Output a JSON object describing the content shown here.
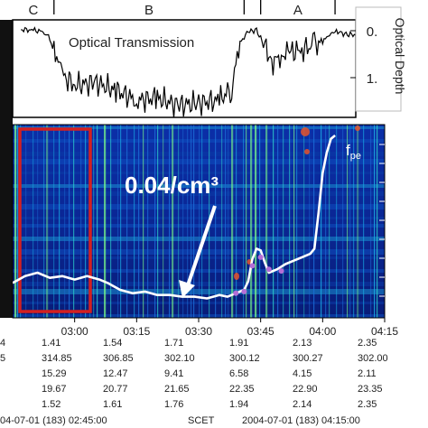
{
  "chart_data": {
    "type": "line",
    "top_panel": {
      "label": "Optical Transmission",
      "ylabel": "Optical Depth",
      "y_ticks": [
        "0.",
        "1."
      ],
      "regions": [
        {
          "label": "C",
          "start": "02:45",
          "end": "02:55"
        },
        {
          "label": "B",
          "start": "02:55",
          "end": "03:41"
        },
        {
          "label": "",
          "start": "03:41",
          "end": "03:45"
        },
        {
          "label": "A",
          "start": "03:45",
          "end": "04:03"
        }
      ],
      "series": [
        {
          "values": [
            [
              "02:47",
              0.05
            ],
            [
              "02:50",
              0.06
            ],
            [
              "02:53",
              0.1
            ],
            [
              "02:55",
              0.4
            ],
            [
              "02:57",
              0.95
            ],
            [
              "03:00",
              1.15
            ],
            [
              "03:05",
              1.1
            ],
            [
              "03:10",
              1.25
            ],
            [
              "03:15",
              1.45
            ],
            [
              "03:20",
              1.4
            ],
            [
              "03:25",
              1.55
            ],
            [
              "03:30",
              1.5
            ],
            [
              "03:35",
              1.45
            ],
            [
              "03:38",
              1.2
            ],
            [
              "03:40",
              0.3
            ],
            [
              "03:42",
              0.1
            ],
            [
              "03:44",
              0.05
            ],
            [
              "03:46",
              0.4
            ],
            [
              "03:48",
              0.7
            ],
            [
              "03:50",
              0.55
            ],
            [
              "03:52",
              0.5
            ],
            [
              "03:55",
              0.45
            ],
            [
              "03:58",
              0.35
            ],
            [
              "04:00",
              0.3
            ],
            [
              "04:02",
              0.1
            ],
            [
              "04:04",
              0.1
            ],
            [
              "04:06",
              0.15
            ],
            [
              "04:10",
              0.15
            ]
          ]
        }
      ]
    },
    "bottom_panel": {
      "annotation": "0.04/cm³",
      "curve_label": "f",
      "curve_label_sub": "pe",
      "series": [
        {
          "values": [
            [
              "02:45",
              0.14
            ],
            [
              "02:48",
              0.18
            ],
            [
              "02:51",
              0.2
            ],
            [
              "02:54",
              0.17
            ],
            [
              "02:57",
              0.18
            ],
            [
              "03:00",
              0.16
            ],
            [
              "03:03",
              0.18
            ],
            [
              "03:06",
              0.16
            ],
            [
              "03:08",
              0.14
            ],
            [
              "03:11",
              0.1
            ],
            [
              "03:14",
              0.08
            ],
            [
              "03:17",
              0.09
            ],
            [
              "03:20",
              0.07
            ],
            [
              "03:23",
              0.07
            ],
            [
              "03:26",
              0.06
            ],
            [
              "03:29",
              0.06
            ],
            [
              "03:32",
              0.05
            ],
            [
              "03:35",
              0.07
            ],
            [
              "03:37",
              0.06
            ],
            [
              "03:39",
              0.08
            ],
            [
              "03:41",
              0.1
            ],
            [
              "03:42",
              0.15
            ],
            [
              "03:43",
              0.28
            ],
            [
              "03:44",
              0.34
            ],
            [
              "03:45",
              0.33
            ],
            [
              "03:46",
              0.26
            ],
            [
              "03:47",
              0.2
            ],
            [
              "03:49",
              0.22
            ],
            [
              "03:51",
              0.25
            ],
            [
              "03:53",
              0.27
            ],
            [
              "03:55",
              0.29
            ],
            [
              "03:57",
              0.31
            ],
            [
              "03:58",
              0.34
            ],
            [
              "03:59",
              0.55
            ],
            [
              "04:00",
              0.78
            ],
            [
              "04:01",
              0.9
            ],
            [
              "04:02",
              0.98
            ],
            [
              "04:03",
              1.0
            ]
          ]
        }
      ],
      "points": [
        [
          "03:39",
          0.08
        ],
        [
          "03:41",
          0.09
        ],
        [
          "03:43",
          0.24
        ],
        [
          "03:45",
          0.29
        ],
        [
          "03:47",
          0.22
        ],
        [
          "03:50",
          0.21
        ]
      ]
    },
    "x_ticks": [
      "03:00",
      "03:15",
      "03:30",
      "03:45",
      "04:00",
      "04:15"
    ],
    "table": {
      "rows": [
        [
          "4",
          "1.41",
          "1.54",
          "1.71",
          "1.91",
          "2.13",
          "2.35"
        ],
        [
          "5",
          "314.85",
          "306.85",
          "302.10",
          "300.12",
          "300.27",
          "302.00"
        ],
        [
          "",
          "15.29",
          "12.47",
          "9.41",
          "6.58",
          "4.15",
          "2.11"
        ],
        [
          "",
          "19.67",
          "20.77",
          "21.65",
          "22.35",
          "22.90",
          "23.35"
        ],
        [
          "",
          "1.52",
          "1.61",
          "1.76",
          "1.94",
          "2.14",
          "2.35"
        ]
      ],
      "footer": [
        "04-07-01 (183) 02:45:00",
        "SCET",
        "2004-07-01 (183) 04:15:00"
      ]
    },
    "colors": {
      "spectrogram_bg": "#0a1f8f",
      "curve": "#ffffff",
      "highlight_box": "#d42020",
      "dots": "#b56fd6",
      "hot": "#e8532a"
    }
  }
}
